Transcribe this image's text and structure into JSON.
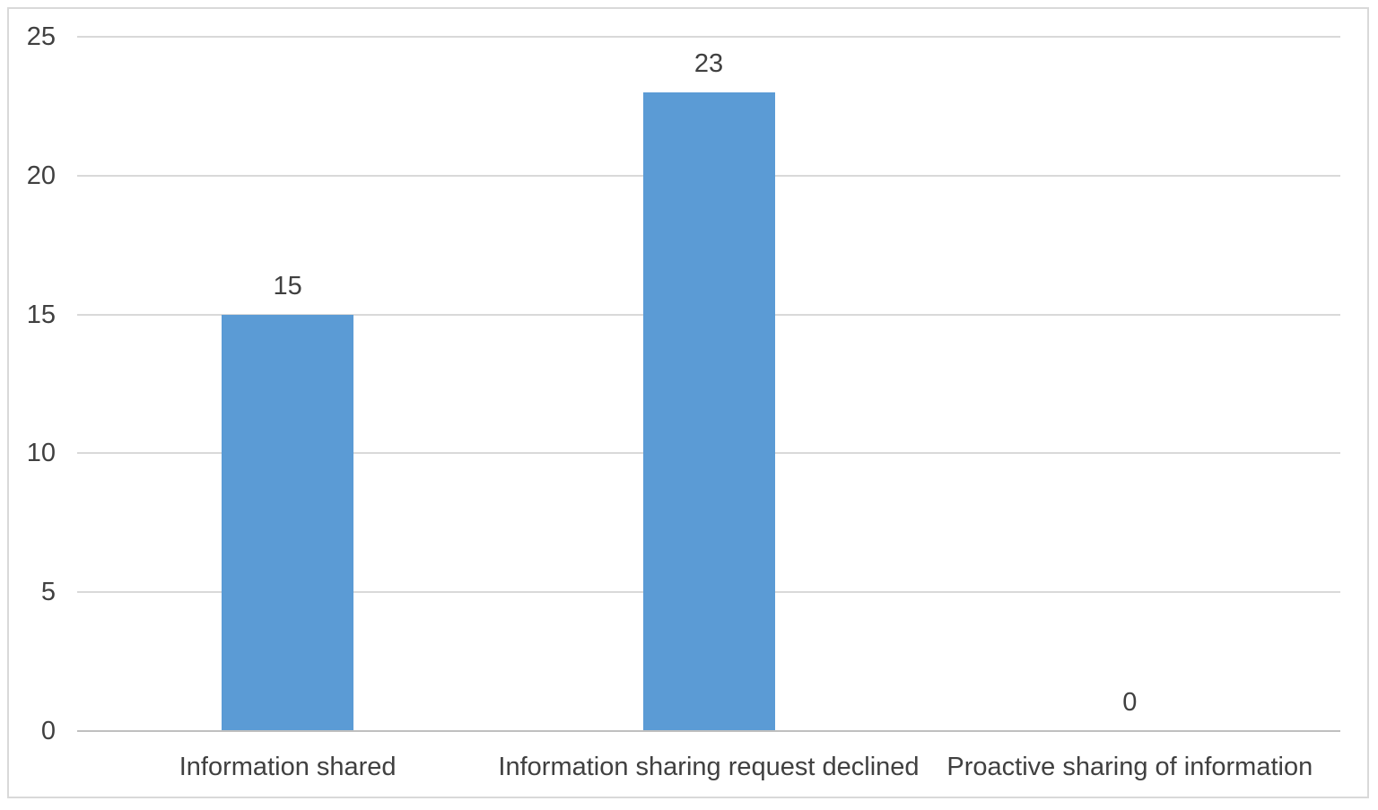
{
  "chart_data": {
    "type": "bar",
    "categories": [
      "Information shared",
      "Information sharing request declined",
      "Proactive sharing of information"
    ],
    "values": [
      15,
      23,
      0
    ],
    "data_labels": [
      "15",
      "23",
      "0"
    ],
    "title": "",
    "xlabel": "",
    "ylabel": "",
    "ylim": [
      0,
      25
    ],
    "yticks": [
      0,
      5,
      10,
      15,
      20,
      25
    ],
    "grid": true,
    "legend": false,
    "data_labels_position": "outside-end",
    "colors": {
      "bar": "#5B9BD5",
      "gridline": "#D9D9D9",
      "axis_line": "#BFBFBF",
      "text": "#404040",
      "frame_border": "#D9D9D9",
      "background": "#FFFFFF"
    }
  }
}
